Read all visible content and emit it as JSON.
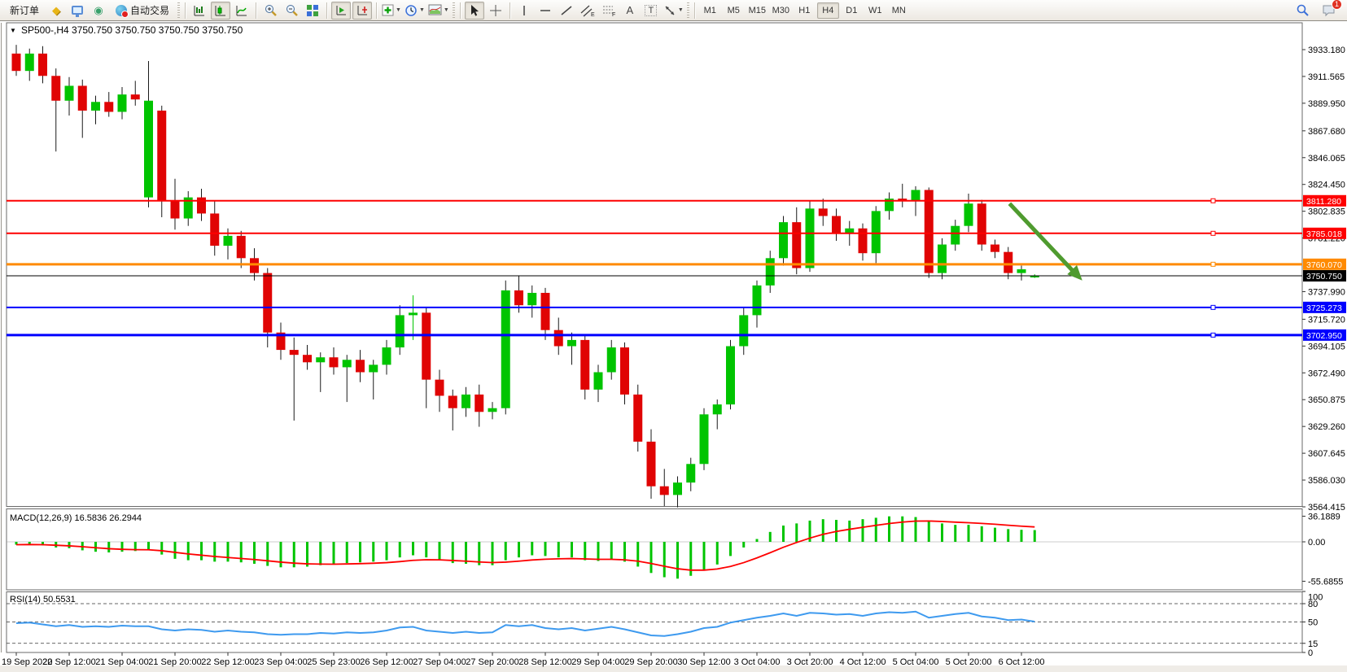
{
  "toolbar": {
    "new_order": "新订单",
    "auto_trading": "自动交易",
    "timeframes": [
      "M1",
      "M5",
      "M15",
      "M30",
      "H1",
      "H4",
      "D1",
      "W1",
      "MN"
    ],
    "active_timeframe": "H4",
    "notification_badge": "1",
    "icon_names": [
      "gold-ingot",
      "market-watch-monitor",
      "signals",
      "autotrade-globe",
      "bar-chart",
      "candlestick-chart",
      "line-chart",
      "zoom-in",
      "zoom-out",
      "tile-windows",
      "auto-scroll",
      "chart-shift",
      "add-indicator",
      "periods-clock",
      "templates",
      "cursor",
      "crosshair",
      "vertical-line",
      "horizontal-line",
      "trendline",
      "equidistant-channel",
      "fibonacci",
      "text",
      "text-label",
      "arrows",
      "search",
      "chat"
    ]
  },
  "chart": {
    "title_symbol": "SP500-,H4",
    "title_ohlc": "3750.750 3750.750 3750.750 3750.750",
    "macd_label": "MACD(12,26,9) 16.5836 26.2944",
    "rsi_label": "RSI(14) 50.5531"
  },
  "chart_data": {
    "type": "candlestick",
    "symbol": "SP500-",
    "period": "H4",
    "colors": {
      "bull": "#00c400",
      "bear": "#e00404",
      "wick": "#1a1a1a",
      "hline_red": "#fe0000",
      "hline_orange": "#ff8a00",
      "hline_blue": "#0000fe",
      "current_black": "#000000",
      "macd_hist": "#00c400",
      "macd_signal": "#fe0000",
      "rsi_line": "#3e9aef",
      "arrow": "#4f9b2f"
    },
    "price_ticks": [
      "3933.180",
      "3911.565",
      "3889.950",
      "3867.680",
      "3846.065",
      "3824.450",
      "3802.835",
      "3781.220",
      "3737.990",
      "3715.720",
      "3694.105",
      "3672.490",
      "3650.875",
      "3629.260",
      "3607.645",
      "3586.030",
      "3564.415"
    ],
    "time_labels": [
      "19 Sep 2022",
      "20 Sep 12:00",
      "21 Sep 04:00",
      "21 Sep 20:00",
      "22 Sep 12:00",
      "23 Sep 04:00",
      "25 Sep 23:00",
      "26 Sep 12:00",
      "27 Sep 04:00",
      "27 Sep 20:00",
      "28 Sep 12:00",
      "29 Sep 04:00",
      "29 Sep 20:00",
      "30 Sep 12:00",
      "3 Oct 04:00",
      "3 Oct 20:00",
      "4 Oct 12:00",
      "5 Oct 04:00",
      "5 Oct 20:00",
      "6 Oct 12:00"
    ],
    "candles": [
      [
        3930,
        3937,
        3912,
        3916
      ],
      [
        3916,
        3934,
        3908,
        3930
      ],
      [
        3930,
        3936,
        3906,
        3912
      ],
      [
        3912,
        3918,
        3851,
        3892
      ],
      [
        3892,
        3911,
        3880,
        3904
      ],
      [
        3904,
        3909,
        3862,
        3884
      ],
      [
        3884,
        3896,
        3873,
        3891
      ],
      [
        3891,
        3899,
        3879,
        3883
      ],
      [
        3883,
        3903,
        3877,
        3897
      ],
      [
        3897,
        3908,
        3888,
        3893
      ],
      [
        3814,
        3924,
        3806,
        3892
      ],
      [
        3884,
        3888,
        3798,
        3811
      ],
      [
        3811,
        3829,
        3788,
        3797
      ],
      [
        3797,
        3819,
        3791,
        3814
      ],
      [
        3814,
        3821,
        3795,
        3801
      ],
      [
        3801,
        3811,
        3767,
        3775
      ],
      [
        3775,
        3789,
        3764,
        3783
      ],
      [
        3783,
        3787,
        3757,
        3765
      ],
      [
        3765,
        3773,
        3747,
        3753
      ],
      [
        3753,
        3757,
        3693,
        3705
      ],
      [
        3705,
        3713,
        3683,
        3691
      ],
      [
        3691,
        3701,
        3634,
        3687
      ],
      [
        3687,
        3695,
        3675,
        3681
      ],
      [
        3681,
        3689,
        3657,
        3685
      ],
      [
        3685,
        3693,
        3671,
        3677
      ],
      [
        3677,
        3687,
        3649,
        3683
      ],
      [
        3683,
        3691,
        3665,
        3673
      ],
      [
        3673,
        3683,
        3651,
        3679
      ],
      [
        3679,
        3699,
        3671,
        3693
      ],
      [
        3693,
        3727,
        3687,
        3719
      ],
      [
        3719,
        3735,
        3699,
        3721
      ],
      [
        3721,
        3725,
        3644,
        3667
      ],
      [
        3667,
        3675,
        3641,
        3654
      ],
      [
        3654,
        3659,
        3626,
        3644
      ],
      [
        3644,
        3661,
        3637,
        3655
      ],
      [
        3655,
        3663,
        3629,
        3641
      ],
      [
        3641,
        3649,
        3635,
        3644
      ],
      [
        3644,
        3747,
        3639,
        3739
      ],
      [
        3739,
        3751,
        3721,
        3727
      ],
      [
        3727,
        3743,
        3717,
        3737
      ],
      [
        3737,
        3741,
        3699,
        3707
      ],
      [
        3707,
        3717,
        3687,
        3694
      ],
      [
        3694,
        3705,
        3679,
        3699
      ],
      [
        3699,
        3703,
        3651,
        3659
      ],
      [
        3659,
        3679,
        3649,
        3673
      ],
      [
        3673,
        3699,
        3667,
        3693
      ],
      [
        3693,
        3697,
        3647,
        3655
      ],
      [
        3655,
        3663,
        3609,
        3617
      ],
      [
        3617,
        3627,
        3571,
        3581
      ],
      [
        3581,
        3595,
        3565,
        3574
      ],
      [
        3574,
        3589,
        3564,
        3584
      ],
      [
        3584,
        3604,
        3577,
        3599
      ],
      [
        3599,
        3644,
        3594,
        3639
      ],
      [
        3639,
        3651,
        3627,
        3647
      ],
      [
        3647,
        3699,
        3643,
        3694
      ],
      [
        3694,
        3725,
        3687,
        3719
      ],
      [
        3719,
        3747,
        3709,
        3743
      ],
      [
        3743,
        3771,
        3737,
        3765
      ],
      [
        3765,
        3799,
        3759,
        3794
      ],
      [
        3794,
        3806,
        3752,
        3757
      ],
      [
        3757,
        3811,
        3754,
        3805
      ],
      [
        3805,
        3813,
        3791,
        3799
      ],
      [
        3799,
        3805,
        3779,
        3785
      ],
      [
        3785,
        3795,
        3775,
        3789
      ],
      [
        3789,
        3793,
        3763,
        3769
      ],
      [
        3769,
        3807,
        3761,
        3803
      ],
      [
        3803,
        3818,
        3796,
        3813
      ],
      [
        3813,
        3825,
        3806,
        3811
      ],
      [
        3811,
        3823,
        3799,
        3820
      ],
      [
        3820,
        3822,
        3749,
        3753
      ],
      [
        3753,
        3781,
        3748,
        3776
      ],
      [
        3776,
        3796,
        3771,
        3791
      ],
      [
        3791,
        3817,
        3786,
        3809
      ],
      [
        3809,
        3812,
        3771,
        3776
      ],
      [
        3776,
        3780,
        3765,
        3770
      ],
      [
        3770,
        3774,
        3748,
        3753
      ],
      [
        3753,
        3759,
        3747,
        3756
      ],
      [
        3750.5,
        3752,
        3749,
        3750.75
      ]
    ],
    "lime_wick_bars": [
      30,
      77
    ],
    "hlines": [
      {
        "price": 3811.28,
        "label": "3811.280",
        "color": "#fe0000",
        "width": 2
      },
      {
        "price": 3785.018,
        "label": "3785.018",
        "color": "#fe0000",
        "width": 2
      },
      {
        "price": 3760.07,
        "label": "3760.070",
        "color": "#ff8a00",
        "width": 3
      },
      {
        "price": 3725.273,
        "label": "3725.273",
        "color": "#0000fe",
        "width": 2
      },
      {
        "price": 3702.95,
        "label": "3702.950",
        "color": "#0000fe",
        "width": 3
      }
    ],
    "current_price": {
      "price": 3750.75,
      "label": "3750.750",
      "color": "#000000"
    },
    "arrow": {
      "from_bar": 75.1,
      "from_price": 3809,
      "to_bar": 80.6,
      "to_price": 3747
    },
    "macd": {
      "label": "MACD(12,26,9) 16.5836 26.2944",
      "main_value": "16.5836",
      "signal_value": "26.2944",
      "axis_labels": [
        "36.1889",
        "0.00",
        "-55.6855"
      ],
      "values": [
        -4,
        -3,
        -5,
        -8,
        -9,
        -12,
        -14,
        -15,
        -14,
        -13,
        -12,
        -18,
        -24,
        -26,
        -26,
        -28,
        -28,
        -29,
        -31,
        -34,
        -36,
        -36,
        -35,
        -33,
        -32,
        -30,
        -29,
        -28,
        -26,
        -22,
        -19,
        -22,
        -26,
        -30,
        -31,
        -33,
        -33,
        -26,
        -22,
        -19,
        -20,
        -22,
        -22,
        -26,
        -27,
        -25,
        -28,
        -35,
        -44,
        -50,
        -52,
        -48,
        -40,
        -32,
        -20,
        -8,
        4,
        14,
        23,
        26,
        30,
        32,
        31,
        30,
        32,
        34,
        36,
        36,
        35,
        30,
        26,
        24,
        24,
        22,
        20,
        18,
        17,
        16.6
      ]
    },
    "rsi": {
      "label": "RSI(14) 50.5531",
      "value": "50.5531",
      "axis_labels": [
        "100",
        "80",
        "50",
        "15",
        "0"
      ],
      "levels": [
        80,
        50,
        15
      ],
      "range": [
        0,
        100
      ],
      "values": [
        48,
        49,
        46,
        43,
        45,
        42,
        43,
        42,
        44,
        43,
        43,
        38,
        36,
        38,
        37,
        34,
        36,
        34,
        33,
        30,
        29,
        30,
        30,
        32,
        31,
        33,
        32,
        33,
        36,
        41,
        42,
        36,
        34,
        32,
        34,
        32,
        33,
        45,
        43,
        45,
        40,
        38,
        40,
        36,
        39,
        42,
        38,
        33,
        28,
        27,
        30,
        34,
        40,
        42,
        49,
        53,
        57,
        60,
        64,
        60,
        65,
        64,
        62,
        63,
        60,
        64,
        66,
        65,
        67,
        57,
        60,
        63,
        65,
        59,
        57,
        53,
        54,
        50.55
      ]
    }
  }
}
